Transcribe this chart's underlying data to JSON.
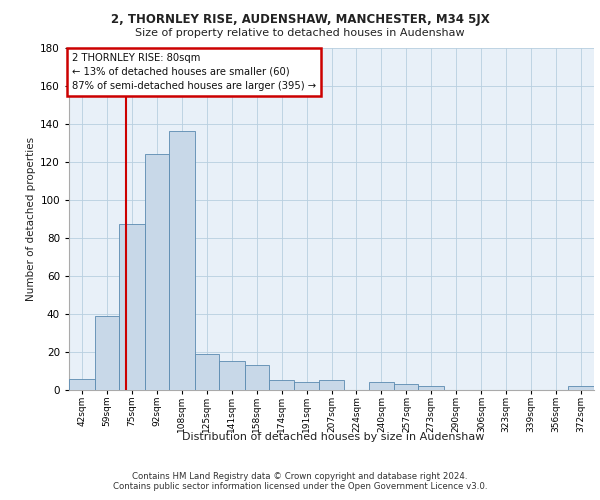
{
  "title1": "2, THORNLEY RISE, AUDENSHAW, MANCHESTER, M34 5JX",
  "title2": "Size of property relative to detached houses in Audenshaw",
  "xlabel": "Distribution of detached houses by size in Audenshaw",
  "ylabel": "Number of detached properties",
  "footnote1": "Contains HM Land Registry data © Crown copyright and database right 2024.",
  "footnote2": "Contains public sector information licensed under the Open Government Licence v3.0.",
  "bar_color": "#c8d8e8",
  "bar_edge_color": "#5a8ab0",
  "grid_color": "#b8cfe0",
  "bg_color": "#e8f0f8",
  "annotation_box_color": "#cc0000",
  "vline_color": "#cc0000",
  "annotation_text": "2 THORNLEY RISE: 80sqm\n← 13% of detached houses are smaller (60)\n87% of semi-detached houses are larger (395) →",
  "property_sqm": 80,
  "bin_labels": [
    "42sqm",
    "59sqm",
    "75sqm",
    "92sqm",
    "108sqm",
    "125sqm",
    "141sqm",
    "158sqm",
    "174sqm",
    "191sqm",
    "207sqm",
    "224sqm",
    "240sqm",
    "257sqm",
    "273sqm",
    "290sqm",
    "306sqm",
    "323sqm",
    "339sqm",
    "356sqm",
    "372sqm"
  ],
  "bin_edges": [
    42,
    59,
    75,
    92,
    108,
    125,
    141,
    158,
    174,
    191,
    207,
    224,
    240,
    257,
    273,
    290,
    306,
    323,
    339,
    356,
    372,
    389
  ],
  "bar_heights": [
    6,
    39,
    87,
    124,
    136,
    19,
    15,
    13,
    5,
    4,
    5,
    0,
    4,
    3,
    2,
    0,
    0,
    0,
    0,
    0,
    2
  ],
  "ylim": [
    0,
    180
  ],
  "yticks": [
    0,
    20,
    40,
    60,
    80,
    100,
    120,
    140,
    160,
    180
  ]
}
